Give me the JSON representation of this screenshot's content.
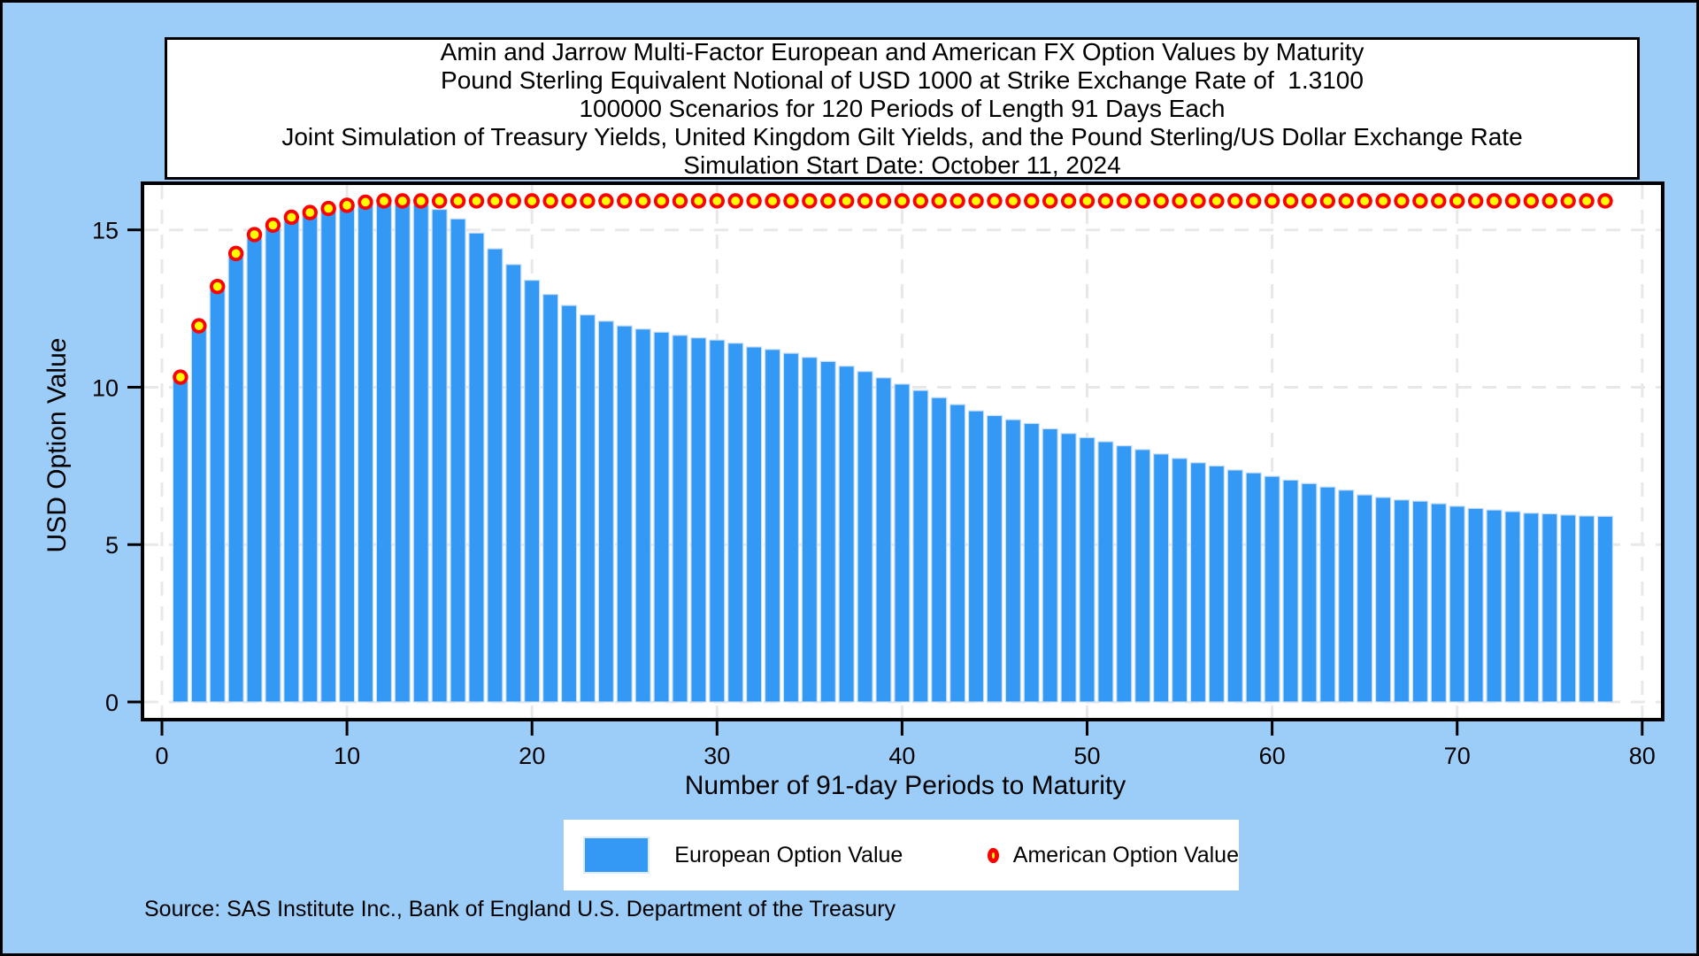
{
  "page": {
    "title_lines": [
      "Amin and Jarrow Multi-Factor European and American FX Option Values by Maturity",
      "Pound Sterling Equivalent Notional of USD 1000 at Strike Exchange Rate of  1.3100",
      "100000 Scenarios for 120 Periods of Length 91 Days Each",
      "Joint Simulation of Treasury Yields, United Kingdom Gilt Yields, and the Pound Sterling/US Dollar Exchange Rate",
      "Simulation Start Date: October 11, 2024"
    ],
    "source": "Source: SAS Institute Inc., Bank of England U.S. Department of the Treasury",
    "background_color": "#9CCDF9"
  },
  "legend": {
    "european_label": "European Option Value",
    "american_label": "American Option Value"
  },
  "chart_data": {
    "type": "bar",
    "title": "Amin and Jarrow Multi-Factor European and American FX Option Values by Maturity",
    "xlabel": "Number of 91-day Periods to Maturity",
    "ylabel": "USD Option Value",
    "xticks": [
      0,
      10,
      20,
      30,
      40,
      50,
      60,
      70,
      80
    ],
    "yticks": [
      0,
      5,
      10,
      15
    ],
    "xlim": [
      -1,
      81
    ],
    "ylim": [
      0,
      16.5
    ],
    "grid": "dashed",
    "gridline_color": "#E8E8E8",
    "legend_position": "bottom",
    "x": [
      1,
      2,
      3,
      4,
      5,
      6,
      7,
      8,
      9,
      10,
      11,
      12,
      13,
      14,
      15,
      16,
      17,
      18,
      19,
      20,
      21,
      22,
      23,
      24,
      25,
      26,
      27,
      28,
      29,
      30,
      31,
      32,
      33,
      34,
      35,
      36,
      37,
      38,
      39,
      40,
      41,
      42,
      43,
      44,
      45,
      46,
      47,
      48,
      49,
      50,
      51,
      52,
      53,
      54,
      55,
      56,
      57,
      58,
      59,
      60,
      61,
      62,
      63,
      64,
      65,
      66,
      67,
      68,
      69,
      70,
      71,
      72,
      73,
      74,
      75,
      76,
      77,
      78
    ],
    "series": [
      {
        "name": "European Option Value",
        "type": "bar",
        "color": "#3399F5",
        "outline_color": "#C9DFF5",
        "values": [
          10.2,
          11.85,
          13.1,
          14.15,
          14.75,
          15.05,
          15.3,
          15.45,
          15.6,
          15.7,
          15.78,
          15.82,
          15.85,
          15.8,
          15.65,
          15.35,
          14.9,
          14.4,
          13.9,
          13.4,
          12.95,
          12.6,
          12.3,
          12.1,
          11.95,
          11.85,
          11.75,
          11.65,
          11.57,
          11.5,
          11.4,
          11.28,
          11.2,
          11.08,
          10.95,
          10.82,
          10.67,
          10.5,
          10.3,
          10.1,
          9.9,
          9.67,
          9.45,
          9.25,
          9.1,
          8.97,
          8.85,
          8.68,
          8.53,
          8.4,
          8.27,
          8.14,
          8.02,
          7.88,
          7.74,
          7.6,
          7.5,
          7.37,
          7.28,
          7.17,
          7.05,
          6.94,
          6.83,
          6.73,
          6.58,
          6.5,
          6.42,
          6.38,
          6.3,
          6.22,
          6.15,
          6.1,
          6.05,
          6.0,
          5.98,
          5.94,
          5.91,
          5.9
        ]
      },
      {
        "name": "American Option Value",
        "type": "scatter",
        "marker_fill": "#FFFF00",
        "marker_stroke": "#FF0000",
        "values": [
          10.32,
          11.95,
          13.2,
          14.25,
          14.85,
          15.15,
          15.4,
          15.55,
          15.68,
          15.78,
          15.88,
          15.92,
          15.92,
          15.92,
          15.92,
          15.92,
          15.92,
          15.92,
          15.92,
          15.92,
          15.92,
          15.92,
          15.92,
          15.92,
          15.92,
          15.92,
          15.92,
          15.92,
          15.92,
          15.92,
          15.92,
          15.92,
          15.92,
          15.92,
          15.92,
          15.92,
          15.92,
          15.92,
          15.92,
          15.92,
          15.92,
          15.92,
          15.92,
          15.92,
          15.92,
          15.92,
          15.92,
          15.92,
          15.92,
          15.92,
          15.92,
          15.92,
          15.92,
          15.92,
          15.92,
          15.92,
          15.92,
          15.92,
          15.92,
          15.92,
          15.92,
          15.92,
          15.92,
          15.92,
          15.92,
          15.92,
          15.92,
          15.92,
          15.92,
          15.92,
          15.92,
          15.92,
          15.92,
          15.92,
          15.92,
          15.92,
          15.92,
          15.92
        ]
      }
    ]
  }
}
